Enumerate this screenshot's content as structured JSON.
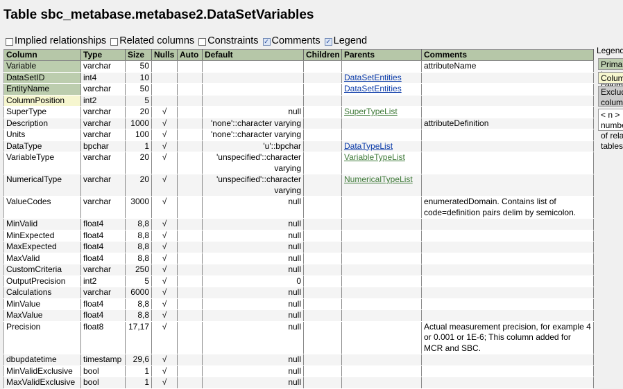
{
  "page": {
    "title": "Table sbc_metabase.metabase2.DataSetVariables"
  },
  "options": [
    {
      "label": "Implied relationships",
      "checked": false
    },
    {
      "label": "Related columns",
      "checked": false
    },
    {
      "label": "Constraints",
      "checked": false
    },
    {
      "label": "Comments",
      "checked": true
    },
    {
      "label": "Legend",
      "checked": true
    }
  ],
  "table": {
    "headers": [
      "Column",
      "Type",
      "Size",
      "Nulls",
      "Auto",
      "Default",
      "Children",
      "Parents",
      "Comments"
    ],
    "null_mark": "√",
    "rows": [
      {
        "name": "Variable",
        "type": "varchar",
        "size": "50",
        "nulls": false,
        "default": "",
        "parents": [],
        "comment": "attributeName",
        "key": "pk"
      },
      {
        "name": "DataSetID",
        "type": "int4",
        "size": "10",
        "nulls": false,
        "default": "",
        "parents": [
          "DataSetEntities"
        ],
        "comment": "",
        "key": "pk"
      },
      {
        "name": "EntityName",
        "type": "varchar",
        "size": "50",
        "nulls": false,
        "default": "",
        "parents": [
          "DataSetEntities"
        ],
        "comment": "",
        "key": "pk"
      },
      {
        "name": "ColumnPosition",
        "type": "int2",
        "size": "5",
        "nulls": false,
        "default": "",
        "parents": [],
        "comment": "",
        "key": "idx"
      },
      {
        "name": "SuperType",
        "type": "varchar",
        "size": "20",
        "nulls": true,
        "default": "null",
        "parents": [
          "SuperTypeList"
        ],
        "comment": "",
        "key": ""
      },
      {
        "name": "Description",
        "type": "varchar",
        "size": "1000",
        "nulls": true,
        "default": "'none'::character varying",
        "parents": [],
        "comment": "attributeDefinition",
        "key": ""
      },
      {
        "name": "Units",
        "type": "varchar",
        "size": "100",
        "nulls": true,
        "default": "'none'::character varying",
        "parents": [],
        "comment": "",
        "key": ""
      },
      {
        "name": "DataType",
        "type": "bpchar",
        "size": "1",
        "nulls": true,
        "default": "'u'::bpchar",
        "parents": [
          "DataTypeList"
        ],
        "comment": "",
        "key": ""
      },
      {
        "name": "VariableType",
        "type": "varchar",
        "size": "20",
        "nulls": true,
        "default": "'unspecified'::character varying",
        "parents": [
          "VariableTypeList"
        ],
        "comment": "",
        "key": ""
      },
      {
        "name": "NumericalType",
        "type": "varchar",
        "size": "20",
        "nulls": true,
        "default": "'unspecified'::character varying",
        "parents": [
          "NumericalTypeList"
        ],
        "comment": "",
        "key": ""
      },
      {
        "name": "ValueCodes",
        "type": "varchar",
        "size": "3000",
        "nulls": true,
        "default": "null",
        "parents": [],
        "comment": "enumeratedDomain. Contains list of code=definition pairs delim by semicolon.",
        "key": ""
      },
      {
        "name": "MinValid",
        "type": "float4",
        "size": "8,8",
        "nulls": true,
        "default": "null",
        "parents": [],
        "comment": "",
        "key": ""
      },
      {
        "name": "MinExpected",
        "type": "float4",
        "size": "8,8",
        "nulls": true,
        "default": "null",
        "parents": [],
        "comment": "",
        "key": ""
      },
      {
        "name": "MaxExpected",
        "type": "float4",
        "size": "8,8",
        "nulls": true,
        "default": "null",
        "parents": [],
        "comment": "",
        "key": ""
      },
      {
        "name": "MaxValid",
        "type": "float4",
        "size": "8,8",
        "nulls": true,
        "default": "null",
        "parents": [],
        "comment": "",
        "key": ""
      },
      {
        "name": "CustomCriteria",
        "type": "varchar",
        "size": "250",
        "nulls": true,
        "default": "null",
        "parents": [],
        "comment": "",
        "key": ""
      },
      {
        "name": "OutputPrecision",
        "type": "int2",
        "size": "5",
        "nulls": true,
        "default": "0",
        "parents": [],
        "comment": "",
        "key": ""
      },
      {
        "name": "Calculations",
        "type": "varchar",
        "size": "6000",
        "nulls": true,
        "default": "null",
        "parents": [],
        "comment": "",
        "key": ""
      },
      {
        "name": "MinValue",
        "type": "float4",
        "size": "8,8",
        "nulls": true,
        "default": "null",
        "parents": [],
        "comment": "",
        "key": ""
      },
      {
        "name": "MaxValue",
        "type": "float4",
        "size": "8,8",
        "nulls": true,
        "default": "null",
        "parents": [],
        "comment": "",
        "key": ""
      },
      {
        "name": "Precision",
        "type": "float8",
        "size": "17,17",
        "nulls": true,
        "default": "null",
        "parents": [],
        "comment": "Actual measurement precision, for example 4 or 0.001 or 1E-6; This column added for MCR and SBC.",
        "key": ""
      },
      {
        "name": "dbupdatetime",
        "type": "timestamp",
        "size": "29,6",
        "nulls": true,
        "default": "null",
        "parents": [],
        "comment": "",
        "key": ""
      },
      {
        "name": "MinValidExclusive",
        "type": "bool",
        "size": "1",
        "nulls": true,
        "default": "null",
        "parents": [],
        "comment": "",
        "key": ""
      },
      {
        "name": "MaxValidExclusive",
        "type": "bool",
        "size": "1",
        "nulls": true,
        "default": "null",
        "parents": [],
        "comment": "",
        "key": ""
      }
    ]
  },
  "legend": {
    "title": "Legend",
    "items": [
      "Primary key columns",
      "Columns with indexes",
      "Excluded column relationships",
      "< n > number of related tables"
    ]
  }
}
